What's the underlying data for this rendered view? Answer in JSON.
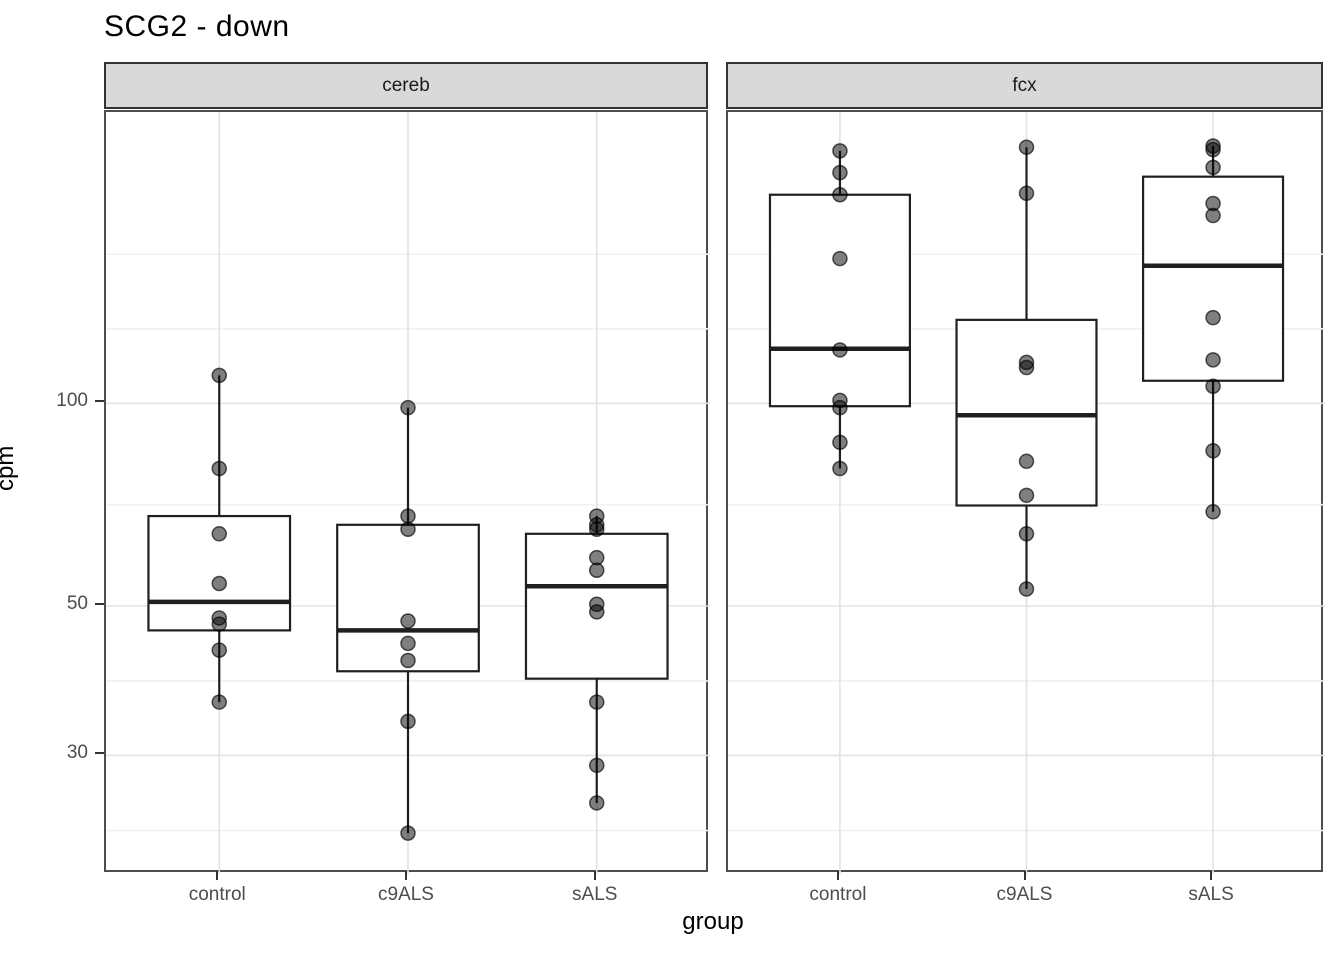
{
  "title": "SCG2 - down",
  "axes": {
    "x_label": "group",
    "y_label": "cpm",
    "x_categories": [
      "control",
      "c9ALS",
      "sALS"
    ],
    "y_ticks": [
      100,
      50,
      30
    ],
    "y_minor_gridlines": [
      166.5,
      129,
      70.7,
      38.7,
      23.2
    ],
    "y_domain": [
      20.0,
      270.7
    ],
    "y_scale": "log10"
  },
  "chart_data": {
    "type": "boxplot",
    "title": "SCG2 - down",
    "xlabel": "group",
    "ylabel": "cpm",
    "facets": [
      {
        "label": "cereb",
        "groups": [
          {
            "name": "control",
            "whisker_low": 36,
            "q1": 46,
            "median": 50.7,
            "q3": 68,
            "whisker_high": 110,
            "points": [
              110,
              80,
              64,
              54,
              48,
              47,
              43,
              36
            ]
          },
          {
            "name": "c9ALS",
            "whisker_low": 23,
            "q1": 40,
            "median": 46,
            "q3": 66,
            "whisker_high": 98.5,
            "points": [
              98.5,
              68,
              65,
              47.5,
              44,
              41.5,
              33.7,
              23
            ]
          },
          {
            "name": "sALS",
            "whisker_low": 25.5,
            "q1": 39,
            "median": 53.5,
            "q3": 64,
            "whisker_high": 68,
            "points": [
              68,
              66,
              65,
              59,
              56.5,
              50.3,
              49,
              36,
              29,
              25.5
            ]
          }
        ]
      },
      {
        "label": "fcx",
        "groups": [
          {
            "name": "control",
            "whisker_low": 80,
            "q1": 99,
            "median": 120.5,
            "q3": 204,
            "whisker_high": 237,
            "points": [
              237,
              220,
              204,
              164,
              120,
              101,
              98.5,
              87.5,
              80
            ]
          },
          {
            "name": "c9ALS",
            "whisker_low": 53,
            "q1": 70.5,
            "median": 96,
            "q3": 133,
            "whisker_high": 240,
            "points": [
              240,
              205,
              115,
              113,
              82,
              73,
              64,
              53
            ]
          },
          {
            "name": "sALS",
            "whisker_low": 69,
            "q1": 108,
            "median": 160,
            "q3": 217,
            "whisker_high": 241,
            "points": [
              241,
              238,
              224,
              198,
              190,
              134,
              116,
              106,
              85,
              69
            ]
          }
        ]
      }
    ]
  },
  "colors": {
    "strip_fill": "#d9d9d9",
    "strip_border": "#333333",
    "panel_border": "#4d4d4d",
    "grid_major": "#e3e3e3",
    "grid_minor": "#f1f1f1",
    "box_stroke": "#1f1f1f",
    "point_fill": "#000000",
    "axis_text": "#4d4d4d",
    "text": "#000000"
  }
}
